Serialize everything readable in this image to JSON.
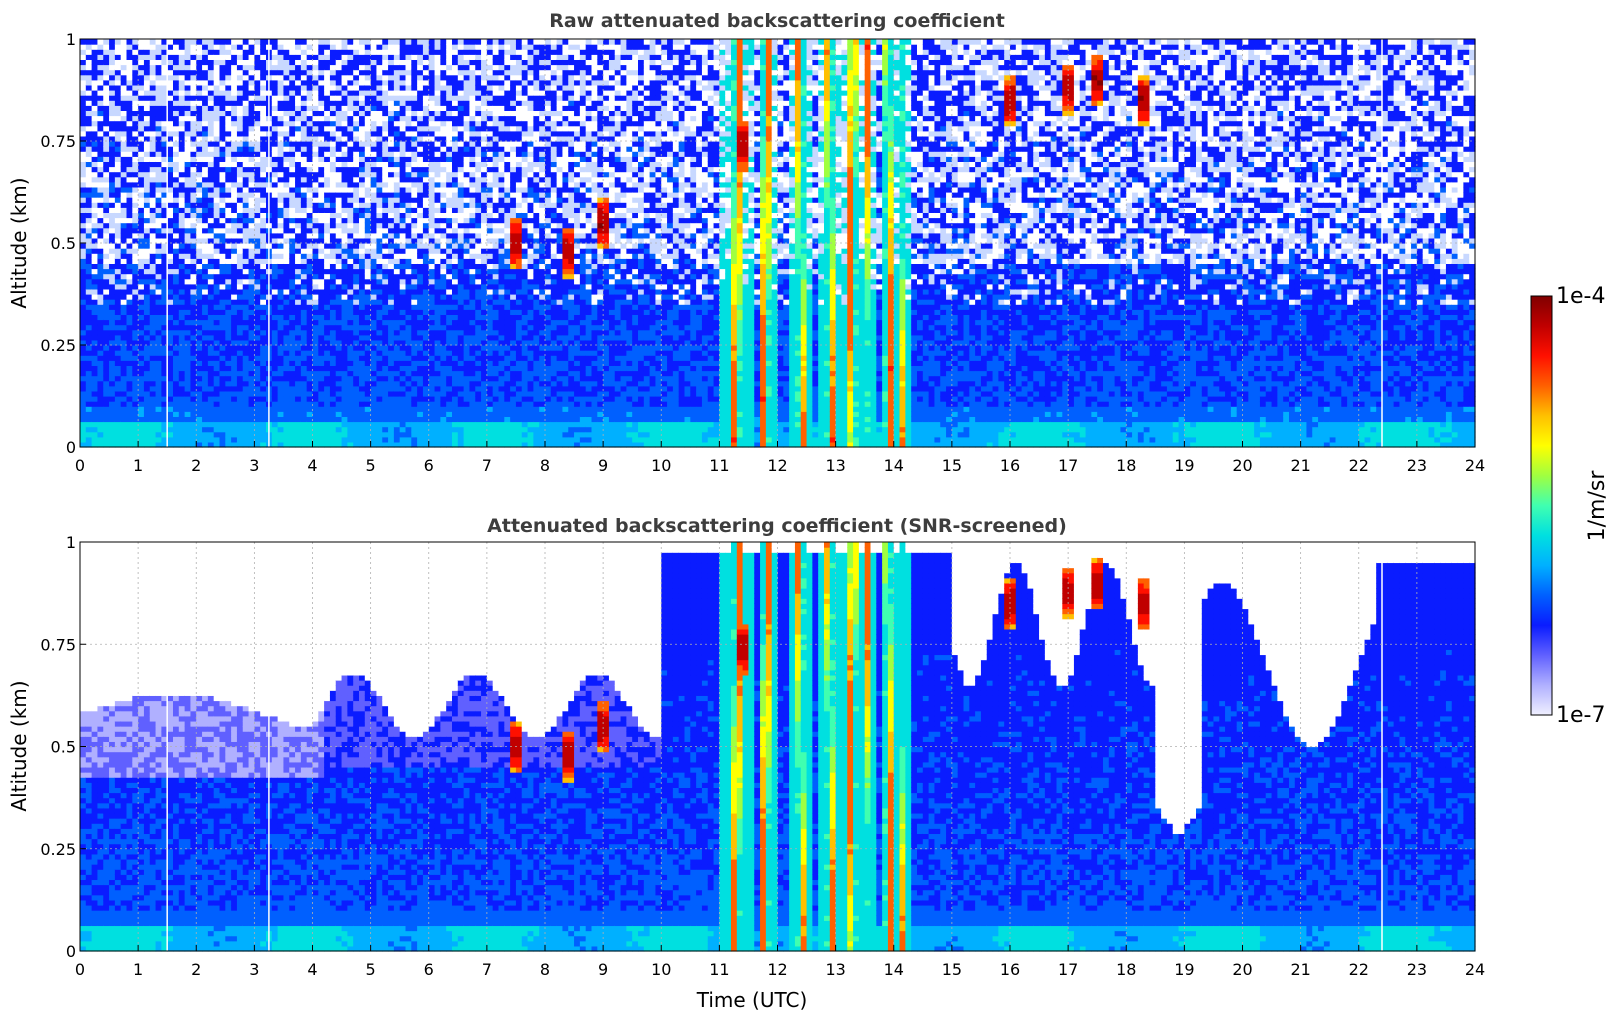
{
  "chart_data": [
    {
      "type": "heatmap",
      "title": "Raw attenuated backscattering coefficient",
      "xlabel": "",
      "ylabel": "Altitude (km)",
      "xlim": [
        0,
        24
      ],
      "ylim": [
        0,
        1
      ],
      "xticks": [
        "0",
        "1",
        "2",
        "3",
        "4",
        "5",
        "6",
        "7",
        "8",
        "9",
        "10",
        "11",
        "12",
        "13",
        "14",
        "15",
        "16",
        "17",
        "18",
        "19",
        "20",
        "21",
        "22",
        "23",
        "24"
      ],
      "yticks": [
        "0",
        "0.25",
        "0.5",
        "0.75",
        "1"
      ],
      "grid": true,
      "screened": false,
      "data_gaps_utc": [
        1.5,
        3.25,
        22.4
      ],
      "cloud_columns_utc": [
        {
          "t": 11.3,
          "w": 0.3
        },
        {
          "t": 11.8,
          "w": 0.15
        },
        {
          "t": 12.4,
          "w": 0.2
        },
        {
          "t": 12.9,
          "w": 0.2
        },
        {
          "t": 13.3,
          "w": 0.15
        },
        {
          "t": 13.55,
          "w": 0.15
        },
        {
          "t": 13.9,
          "w": 0.12
        },
        {
          "t": 14.15,
          "w": 0.1
        }
      ],
      "aerosol_patches": [
        {
          "t": 7.5,
          "z": 0.5
        },
        {
          "t": 8.4,
          "z": 0.48
        },
        {
          "t": 9.0,
          "z": 0.55
        },
        {
          "t": 16.0,
          "z": 0.85
        },
        {
          "t": 17.0,
          "z": 0.88
        },
        {
          "t": 17.5,
          "z": 0.9
        },
        {
          "t": 18.3,
          "z": 0.85
        },
        {
          "t": 11.4,
          "z": 0.74
        }
      ]
    },
    {
      "type": "heatmap",
      "title": "Attenuated backscattering coefficient (SNR-screened)",
      "xlabel": "Time (UTC)",
      "ylabel": "Altitude (km)",
      "xlim": [
        0,
        24
      ],
      "ylim": [
        0,
        1
      ],
      "xticks": [
        "0",
        "1",
        "2",
        "3",
        "4",
        "5",
        "6",
        "7",
        "8",
        "9",
        "10",
        "11",
        "12",
        "13",
        "14",
        "15",
        "16",
        "17",
        "18",
        "19",
        "20",
        "21",
        "22",
        "23",
        "24"
      ],
      "yticks": [
        "0",
        "0.25",
        "0.5",
        "0.75",
        "1"
      ],
      "grid": true,
      "screened": true,
      "data_gaps_utc": [
        1.5,
        3.25,
        22.4
      ],
      "cloud_columns_utc": [
        {
          "t": 11.3,
          "w": 0.3
        },
        {
          "t": 11.8,
          "w": 0.15
        },
        {
          "t": 12.4,
          "w": 0.2
        },
        {
          "t": 12.9,
          "w": 0.2
        },
        {
          "t": 13.3,
          "w": 0.15
        },
        {
          "t": 13.55,
          "w": 0.15
        },
        {
          "t": 13.9,
          "w": 0.12
        },
        {
          "t": 14.15,
          "w": 0.1
        }
      ],
      "aerosol_patches": [
        {
          "t": 7.5,
          "z": 0.5
        },
        {
          "t": 8.4,
          "z": 0.48
        },
        {
          "t": 9.0,
          "z": 0.55
        },
        {
          "t": 16.0,
          "z": 0.85
        },
        {
          "t": 17.0,
          "z": 0.88
        },
        {
          "t": 17.5,
          "z": 0.9
        },
        {
          "t": 18.3,
          "z": 0.85
        },
        {
          "t": 11.4,
          "z": 0.74
        }
      ]
    }
  ],
  "colorbar": {
    "label": "1/m/sr",
    "max_label": "1e-4",
    "min_label": "1e-7",
    "colormap": [
      "#f0f0ff",
      "#b0b0ff",
      "#6060ff",
      "#0a1cff",
      "#0060ff",
      "#00b0ff",
      "#00e0e0",
      "#40ffb0",
      "#a0ff40",
      "#ffff00",
      "#ffc000",
      "#ff6000",
      "#ff1000",
      "#c00000",
      "#800000"
    ]
  }
}
